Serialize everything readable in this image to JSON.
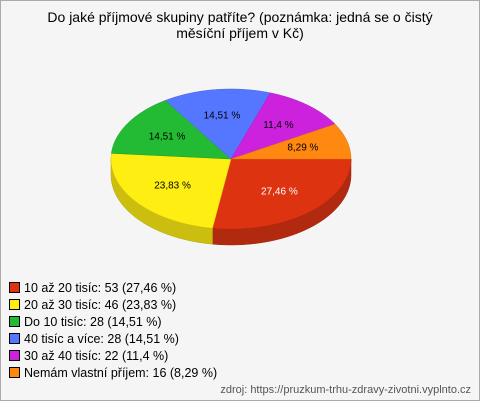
{
  "chart_data": {
    "type": "pie",
    "title": "Do jaké příjmové skupiny patříte? (poznámka: jedná se o čistý měsíční příjem v Kč)",
    "categories": [
      "10 až 20 tisíc: 53 (27,46 %)",
      "20 až 30 tisíc: 46 (23,83 %)",
      "Do 10 tisíc: 28 (14,51 %)",
      "40 tisíc a více: 28 (14,51 %)",
      "30 až 40 tisíc: 22 (11,4 %)",
      "Nemám vlastní příjem: 16 (8,29 %)"
    ],
    "values": [
      27.46,
      23.83,
      14.51,
      14.51,
      11.4,
      8.29
    ],
    "value_labels": [
      "27,46 %",
      "23,83 %",
      "14,51 %",
      "14,51 %",
      "11,4 %",
      "8,29 %"
    ],
    "colors": [
      "#dd3311",
      "#ffee11",
      "#22bb33",
      "#5577ff",
      "#cc22dd",
      "#ff8811"
    ],
    "source": "zdroj: https://pruzkum-trhu-zdravy-zivotni.vyplnto.cz"
  }
}
